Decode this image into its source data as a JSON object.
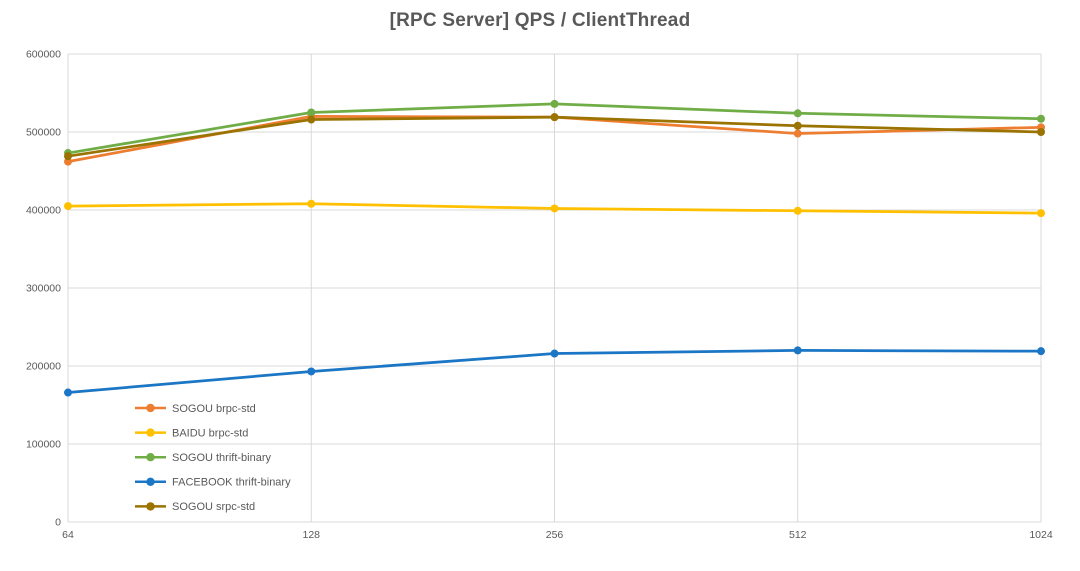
{
  "chart_data": {
    "type": "line",
    "title": "[RPC Server] QPS / ClientThread",
    "x_categories": [
      "64",
      "128",
      "256",
      "512",
      "1024"
    ],
    "xlabel": "",
    "ylabel": "",
    "ylim": [
      0,
      600000
    ],
    "y_tick_step": 100000,
    "y_tick_labels": [
      "0",
      "100000",
      "200000",
      "300000",
      "400000",
      "500000",
      "600000"
    ],
    "grid": true,
    "legend_position": "inside-bottom-left",
    "series": [
      {
        "name": "SOGOU brpc-std",
        "color": "#ED7D31",
        "values": [
          462000,
          520000,
          519000,
          498000,
          506000
        ]
      },
      {
        "name": "BAIDU brpc-std",
        "color": "#FFC000",
        "values": [
          405000,
          408000,
          402000,
          399000,
          396000
        ]
      },
      {
        "name": "SOGOU thrift-binary",
        "color": "#70AD47",
        "values": [
          473000,
          525000,
          536000,
          524000,
          517000
        ]
      },
      {
        "name": "FACEBOOK thrift-binary",
        "color": "#1B76C5",
        "values": [
          166000,
          193000,
          216000,
          220000,
          219000
        ]
      },
      {
        "name": "SOGOU srpc-std",
        "color": "#9A7300",
        "values": [
          469000,
          516000,
          519000,
          508000,
          500000
        ]
      }
    ]
  },
  "style": {
    "gridline_color": "#D9D9D9",
    "axis_label_color": "#595959",
    "legend_text_color": "#595959",
    "background_color": "#FFFFFF"
  }
}
